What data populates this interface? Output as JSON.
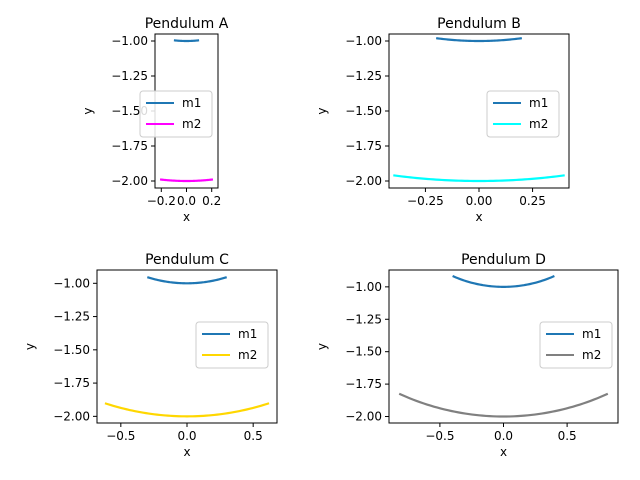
{
  "chart_data": [
    {
      "type": "line",
      "title": "Pendulum A",
      "xlabel": "x",
      "ylabel": "y",
      "xlim": [
        -0.25,
        0.25
      ],
      "ylim": [
        -2.05,
        -0.95
      ],
      "xticks": [
        -0.2,
        0.0,
        0.2
      ],
      "xtick_labels": [
        "−0.2",
        "0.0",
        "0.2"
      ],
      "yticks": [
        -1.0,
        -1.25,
        -1.5,
        -1.75,
        -2.0
      ],
      "ytick_labels": [
        "−1.00",
        "−1.25",
        "−1.50",
        "−1.75",
        "−2.00"
      ],
      "legend": "center-right",
      "series": [
        {
          "name": "m1",
          "color": "#1f77b4",
          "amplitude": 0.1,
          "length": 1.0
        },
        {
          "name": "m2",
          "color": "#ff00ff",
          "amplitude": 0.21,
          "length": 2.0
        }
      ]
    },
    {
      "type": "line",
      "title": "Pendulum B",
      "xlabel": "x",
      "ylabel": "y",
      "xlim": [
        -0.42,
        0.42
      ],
      "ylim": [
        -2.05,
        -0.95
      ],
      "xticks": [
        -0.25,
        0.0,
        0.25
      ],
      "xtick_labels": [
        "−0.25",
        "0.00",
        "0.25"
      ],
      "yticks": [
        -1.0,
        -1.25,
        -1.5,
        -1.75,
        -2.0
      ],
      "ytick_labels": [
        "−1.00",
        "−1.25",
        "−1.50",
        "−1.75",
        "−2.00"
      ],
      "legend": "center-right",
      "series": [
        {
          "name": "m1",
          "color": "#1f77b4",
          "amplitude": 0.2,
          "length": 1.0
        },
        {
          "name": "m2",
          "color": "#00ffff",
          "amplitude": 0.4,
          "length": 2.0
        }
      ]
    },
    {
      "type": "line",
      "title": "Pendulum C",
      "xlabel": "x",
      "ylabel": "y",
      "xlim": [
        -0.68,
        0.68
      ],
      "ylim": [
        -2.05,
        -0.9
      ],
      "xticks": [
        -0.5,
        0.0,
        0.5
      ],
      "xtick_labels": [
        "−0.5",
        "0.0",
        "0.5"
      ],
      "yticks": [
        -1.0,
        -1.25,
        -1.5,
        -1.75,
        -2.0
      ],
      "ytick_labels": [
        "−1.00",
        "−1.25",
        "−1.50",
        "−1.75",
        "−2.00"
      ],
      "legend": "center-right",
      "series": [
        {
          "name": "m1",
          "color": "#1f77b4",
          "amplitude": 0.3,
          "length": 1.0
        },
        {
          "name": "m2",
          "color": "#ffd700",
          "amplitude": 0.62,
          "length": 2.0
        }
      ]
    },
    {
      "type": "line",
      "title": "Pendulum D",
      "xlabel": "x",
      "ylabel": "y",
      "xlim": [
        -0.9,
        0.9
      ],
      "ylim": [
        -2.05,
        -0.87
      ],
      "xticks": [
        -0.5,
        0.0,
        0.5
      ],
      "xtick_labels": [
        "−0.5",
        "0.0",
        "0.5"
      ],
      "yticks": [
        -1.0,
        -1.25,
        -1.5,
        -1.75,
        -2.0
      ],
      "ytick_labels": [
        "−1.00",
        "−1.25",
        "−1.50",
        "−1.75",
        "−2.00"
      ],
      "legend": "center-right",
      "series": [
        {
          "name": "m1",
          "color": "#1f77b4",
          "amplitude": 0.4,
          "length": 1.0
        },
        {
          "name": "m2",
          "color": "#808080",
          "amplitude": 0.82,
          "length": 2.0
        }
      ]
    }
  ]
}
